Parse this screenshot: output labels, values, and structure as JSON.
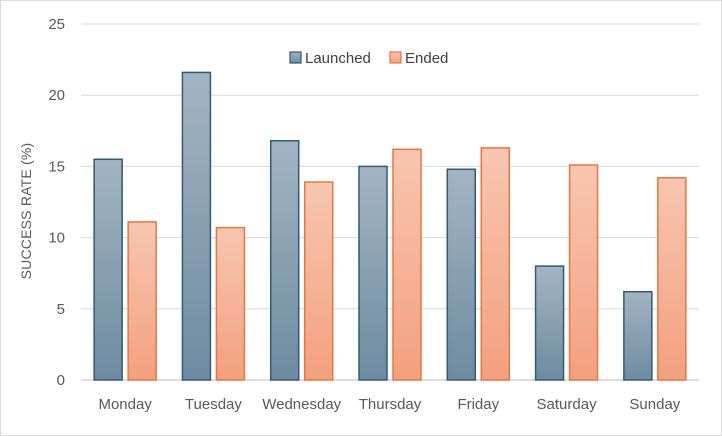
{
  "chart_data": {
    "type": "bar",
    "title": "",
    "xlabel": "",
    "ylabel": "SUCCESS RATE (%)",
    "ylim": [
      0,
      25
    ],
    "yticks": [
      0,
      5,
      10,
      15,
      20,
      25
    ],
    "grid": true,
    "legend_position": "top-center",
    "categories": [
      "Monday",
      "Tuesday",
      "Wednesday",
      "Thursday",
      "Friday",
      "Saturday",
      "Sunday"
    ],
    "series": [
      {
        "name": "Launched",
        "values": [
          15.5,
          21.6,
          16.8,
          15.0,
          14.8,
          8.0,
          6.2
        ],
        "color_top": "#a3b4c2",
        "color_bottom": "#6d8ba1",
        "border": "#2e5b78"
      },
      {
        "name": "Ended",
        "values": [
          11.1,
          10.7,
          13.9,
          16.2,
          16.3,
          15.1,
          14.2
        ],
        "color_top": "#f7c6b0",
        "color_bottom": "#f3a07e",
        "border": "#e8763f"
      }
    ]
  }
}
